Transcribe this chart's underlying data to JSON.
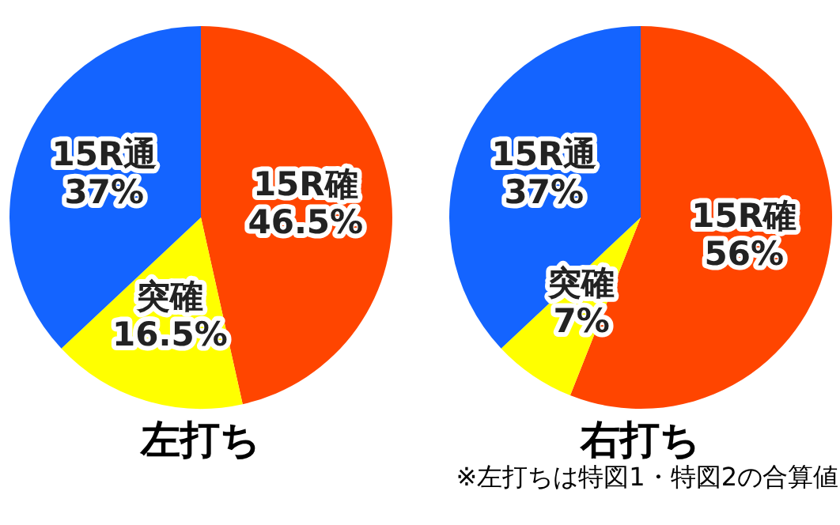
{
  "chart_data": [
    {
      "type": "pie",
      "title": "左打ち",
      "categories": [
        "15R確",
        "突確",
        "15R通"
      ],
      "values": [
        46.5,
        16.5,
        37
      ],
      "value_labels": [
        "46.5%",
        "16.5%",
        "37%"
      ],
      "colors": [
        "#ff4500",
        "#ffff00",
        "#1464ff"
      ]
    },
    {
      "type": "pie",
      "title": "右打ち",
      "categories": [
        "15R確",
        "突確",
        "15R通"
      ],
      "values": [
        56,
        7,
        37
      ],
      "value_labels": [
        "56%",
        "7%",
        "37%"
      ],
      "colors": [
        "#ff4500",
        "#ffff00",
        "#1464ff"
      ],
      "annotations": [
        "※左打ちは特図1・特図2の合算値"
      ]
    }
  ]
}
